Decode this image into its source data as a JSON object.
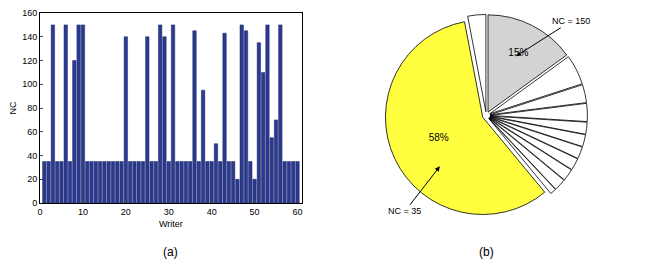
{
  "chart_data": [
    {
      "type": "bar",
      "title": "(a)",
      "xlabel": "Writer",
      "ylabel": "NC",
      "x": [
        1,
        2,
        3,
        4,
        5,
        6,
        7,
        8,
        9,
        10,
        11,
        12,
        13,
        14,
        15,
        16,
        17,
        18,
        19,
        20,
        21,
        22,
        23,
        24,
        25,
        26,
        27,
        28,
        29,
        30,
        31,
        32,
        33,
        34,
        35,
        36,
        37,
        38,
        39,
        40,
        41,
        42,
        43,
        44,
        45,
        46,
        47,
        48,
        49,
        50,
        51,
        52,
        53,
        54,
        55,
        56,
        57,
        58,
        59,
        60
      ],
      "values": [
        35,
        35,
        150,
        35,
        35,
        150,
        35,
        120,
        150,
        150,
        35,
        35,
        35,
        35,
        35,
        35,
        35,
        35,
        35,
        140,
        35,
        35,
        35,
        35,
        140,
        35,
        35,
        150,
        140,
        35,
        150,
        35,
        35,
        35,
        35,
        145,
        35,
        95,
        35,
        35,
        50,
        35,
        143,
        35,
        35,
        20,
        150,
        145,
        35,
        20,
        135,
        110,
        150,
        55,
        70,
        150,
        35,
        35,
        35,
        35
      ],
      "color": "#2b3a8f",
      "xlim": [
        0,
        61
      ],
      "xticks": [
        0,
        10,
        20,
        30,
        40,
        50,
        60
      ],
      "ylim": [
        0,
        160
      ],
      "yticks": [
        0,
        20,
        40,
        60,
        80,
        100,
        120,
        140,
        160
      ],
      "grid": false
    },
    {
      "type": "pie",
      "title": "(b)",
      "values": [
        15,
        5,
        3,
        3,
        2,
        2,
        2,
        2,
        2,
        2,
        1,
        58,
        3
      ],
      "value_labels": [
        "15%",
        null,
        null,
        null,
        null,
        null,
        null,
        null,
        null,
        null,
        null,
        "58%",
        null
      ],
      "colors": [
        "#d3d3d3",
        "#ffffff",
        "#ffffff",
        "#ffffff",
        "#ffffff",
        "#ffffff",
        "#ffffff",
        "#ffffff",
        "#ffffff",
        "#ffffff",
        "#ffffff",
        "#ffff40",
        "#ffffff"
      ],
      "annotations": [
        "NC = 150",
        "NC = 35"
      ]
    }
  ]
}
